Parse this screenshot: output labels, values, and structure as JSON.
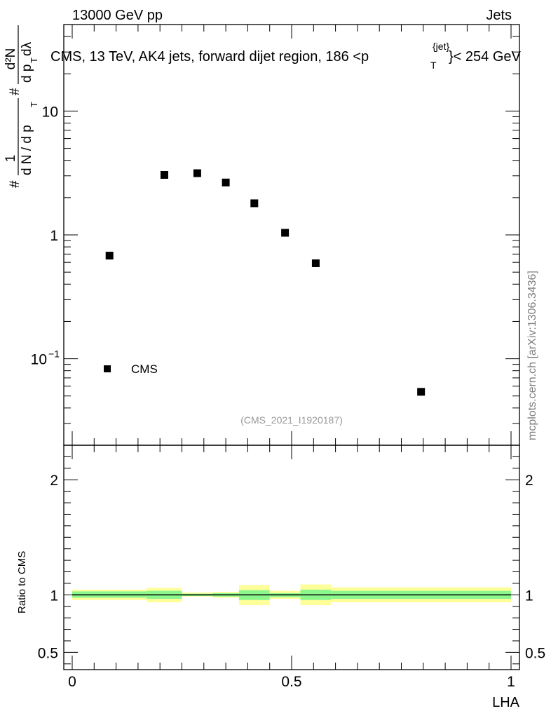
{
  "header": {
    "left": "13000 GeV pp",
    "right": "Jets"
  },
  "side_label": "mcplots.cern.ch [arXiv:1306.3436]",
  "analysis_ref": "(CMS_2021_I1920187)",
  "chart_data": [
    {
      "type": "scatter",
      "panel": "main",
      "title": "CMS, 13 TeV, AK4 jets, forward dijet region, 186 <p_T^{jet}< 254 GeV",
      "title_parts": {
        "main": "CMS, 13 TeV, AK4 jets, forward dijet region, 186 <p",
        "sub": "T",
        "sup": "{jet}",
        "tail": "}< 254 GeV"
      },
      "ylabel_parts": {
        "p1": "#",
        "frac_num": "1",
        "frac_den": "d N / d p",
        "den_sub": "T",
        "p2": "#",
        "frac2_num": "d²N",
        "frac2_den": "d p",
        "den2_sub": "T",
        "den2_tail": " dλ"
      },
      "yscale": "log",
      "xlim": [
        0,
        1
      ],
      "ylim": [
        0.02,
        50
      ],
      "yticks": [
        {
          "value": 0.1,
          "label": "10",
          "sup": "−1"
        },
        {
          "value": 1,
          "label": "1"
        },
        {
          "value": 10,
          "label": "10"
        }
      ],
      "legend": {
        "label": "CMS",
        "marker": "square"
      },
      "series": [
        {
          "name": "CMS",
          "x": [
            0.085,
            0.21,
            0.285,
            0.35,
            0.415,
            0.485,
            0.555,
            0.795
          ],
          "values": [
            0.68,
            3.05,
            3.15,
            2.65,
            1.8,
            1.04,
            0.59,
            0.054
          ]
        }
      ]
    },
    {
      "type": "area",
      "panel": "ratio",
      "xlabel": "LHA",
      "ylabel": "Ratio to CMS",
      "xlim": [
        0,
        1
      ],
      "ylim": [
        0.35,
        2.3
      ],
      "xticks": [
        {
          "value": 0,
          "label": "0"
        },
        {
          "value": 0.5,
          "label": "0.5"
        },
        {
          "value": 1,
          "label": "1"
        }
      ],
      "yticks": [
        {
          "value": 0.5,
          "label": "0.5"
        },
        {
          "value": 1,
          "label": "1"
        },
        {
          "value": 2,
          "label": "2"
        }
      ],
      "reference_line": 1,
      "bands": {
        "edges": [
          0,
          0.17,
          0.25,
          0.32,
          0.38,
          0.45,
          0.52,
          0.59,
          1.0
        ],
        "outer_lo": [
          0.955,
          0.935,
          0.985,
          0.975,
          0.91,
          0.965,
          0.91,
          0.935
        ],
        "outer_hi": [
          1.045,
          1.06,
          1.02,
          1.025,
          1.085,
          1.035,
          1.09,
          1.065
        ],
        "inner_lo": [
          0.975,
          0.965,
          0.99,
          0.985,
          0.955,
          0.98,
          0.955,
          0.965
        ],
        "inner_hi": [
          1.03,
          1.035,
          1.01,
          1.015,
          1.04,
          1.015,
          1.045,
          1.035
        ],
        "outer_color": "#ffff99",
        "inner_color": "#8cf78c"
      }
    }
  ]
}
